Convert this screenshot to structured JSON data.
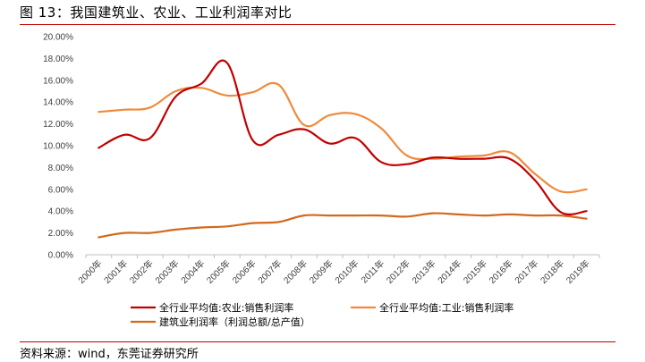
{
  "figure": {
    "title": "图 13：我国建筑业、农业、工业利润率对比",
    "source": "资料来源：wind，东莞证券研究所",
    "accent_color": "#c00000"
  },
  "chart_data": {
    "type": "line",
    "categories": [
      "2000年",
      "2001年",
      "2002年",
      "2003年",
      "2004年",
      "2005年",
      "2006年",
      "2007年",
      "2008年",
      "2009年",
      "2010年",
      "2011年",
      "2012年",
      "2013年",
      "2014年",
      "2015年",
      "2016年",
      "2017年",
      "2018年",
      "2019年"
    ],
    "ylim": [
      0,
      20
    ],
    "y_ticks": [
      "0.00%",
      "2.00%",
      "4.00%",
      "6.00%",
      "8.00%",
      "10.00%",
      "12.00%",
      "14.00%",
      "16.00%",
      "18.00%",
      "20.00%"
    ],
    "y_unit": "%",
    "grid": false,
    "legend_position": "bottom",
    "series": [
      {
        "name": "全行业平均值:农业:销售利润率",
        "color": "#c00000",
        "values": [
          9.8,
          11.0,
          10.7,
          14.5,
          15.7,
          17.6,
          10.5,
          11.0,
          11.5,
          10.2,
          10.7,
          8.5,
          8.3,
          8.9,
          8.8,
          8.8,
          8.8,
          6.8,
          3.9,
          4.0
        ]
      },
      {
        "name": "全行业平均值:工业:销售利润率",
        "color": "#f08a3c",
        "values": [
          13.1,
          13.3,
          13.5,
          15.0,
          15.3,
          14.6,
          14.9,
          15.6,
          11.9,
          12.8,
          12.9,
          11.6,
          9.1,
          8.8,
          9.0,
          9.1,
          9.4,
          7.4,
          5.8,
          6.0
        ]
      },
      {
        "name": "建筑业利润率（利润总额/总产值）",
        "color": "#d2691e",
        "values": [
          1.6,
          2.0,
          2.0,
          2.3,
          2.5,
          2.6,
          2.9,
          3.0,
          3.6,
          3.6,
          3.6,
          3.6,
          3.5,
          3.8,
          3.7,
          3.6,
          3.7,
          3.6,
          3.6,
          3.3
        ]
      }
    ]
  }
}
